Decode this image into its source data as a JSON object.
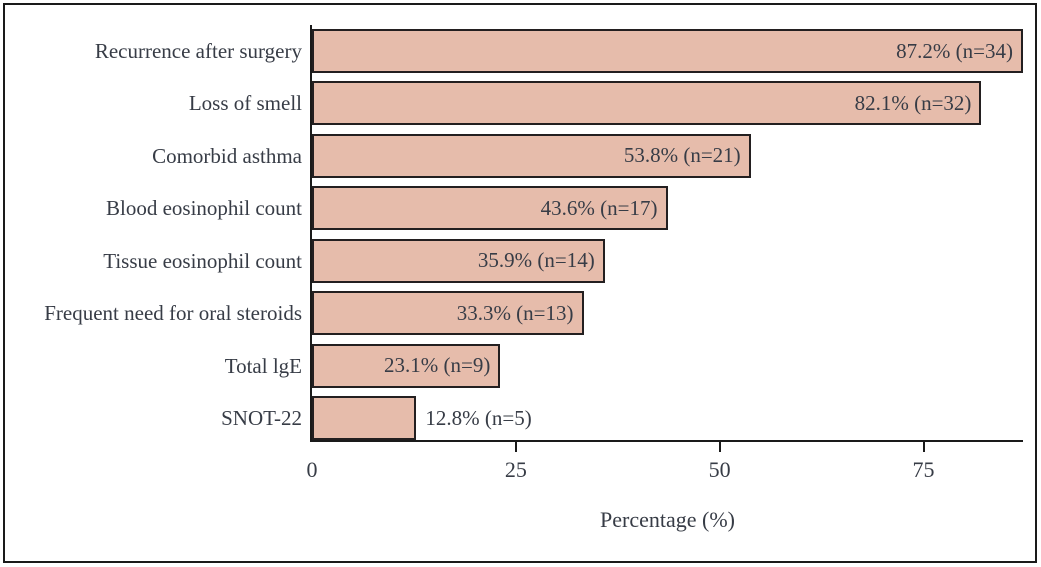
{
  "figure": {
    "background": "#ffffff",
    "frame_border_color": "#1a1a1a"
  },
  "chart_data": {
    "type": "bar",
    "orientation": "horizontal",
    "title": "",
    "xlabel": "Percentage (%)",
    "ylabel": "",
    "categories": [
      "Recurrence after surgery",
      "Loss of smell",
      "Comorbid asthma",
      "Blood eosinophil count",
      "Tissue eosinophil count",
      "Frequent need for oral steroids",
      "Total lgE",
      "SNOT-22"
    ],
    "values": [
      87.2,
      82.1,
      53.8,
      43.6,
      35.9,
      33.3,
      23.1,
      12.8
    ],
    "counts": [
      34,
      32,
      21,
      17,
      14,
      13,
      9,
      5
    ],
    "bar_labels": [
      "87.2% (n=34)",
      "82.1% (n=32)",
      "53.8% (n=21)",
      "43.6% (n=17)",
      "35.9% (n=14)",
      "33.3% (n=13)",
      "23.1% (n=9)",
      "12.8% (n=5)"
    ],
    "label_inside_bar": [
      true,
      true,
      true,
      true,
      true,
      true,
      true,
      false
    ],
    "x_ticks": [
      0,
      25,
      50,
      75
    ],
    "xlim": [
      0,
      87.2
    ],
    "grid": false,
    "legend_position": "none",
    "bar_fill_color": "#e6bcab",
    "bar_border_color": "#231f20",
    "axis_color": "#1a1a1a",
    "text_color": "#373c46"
  }
}
